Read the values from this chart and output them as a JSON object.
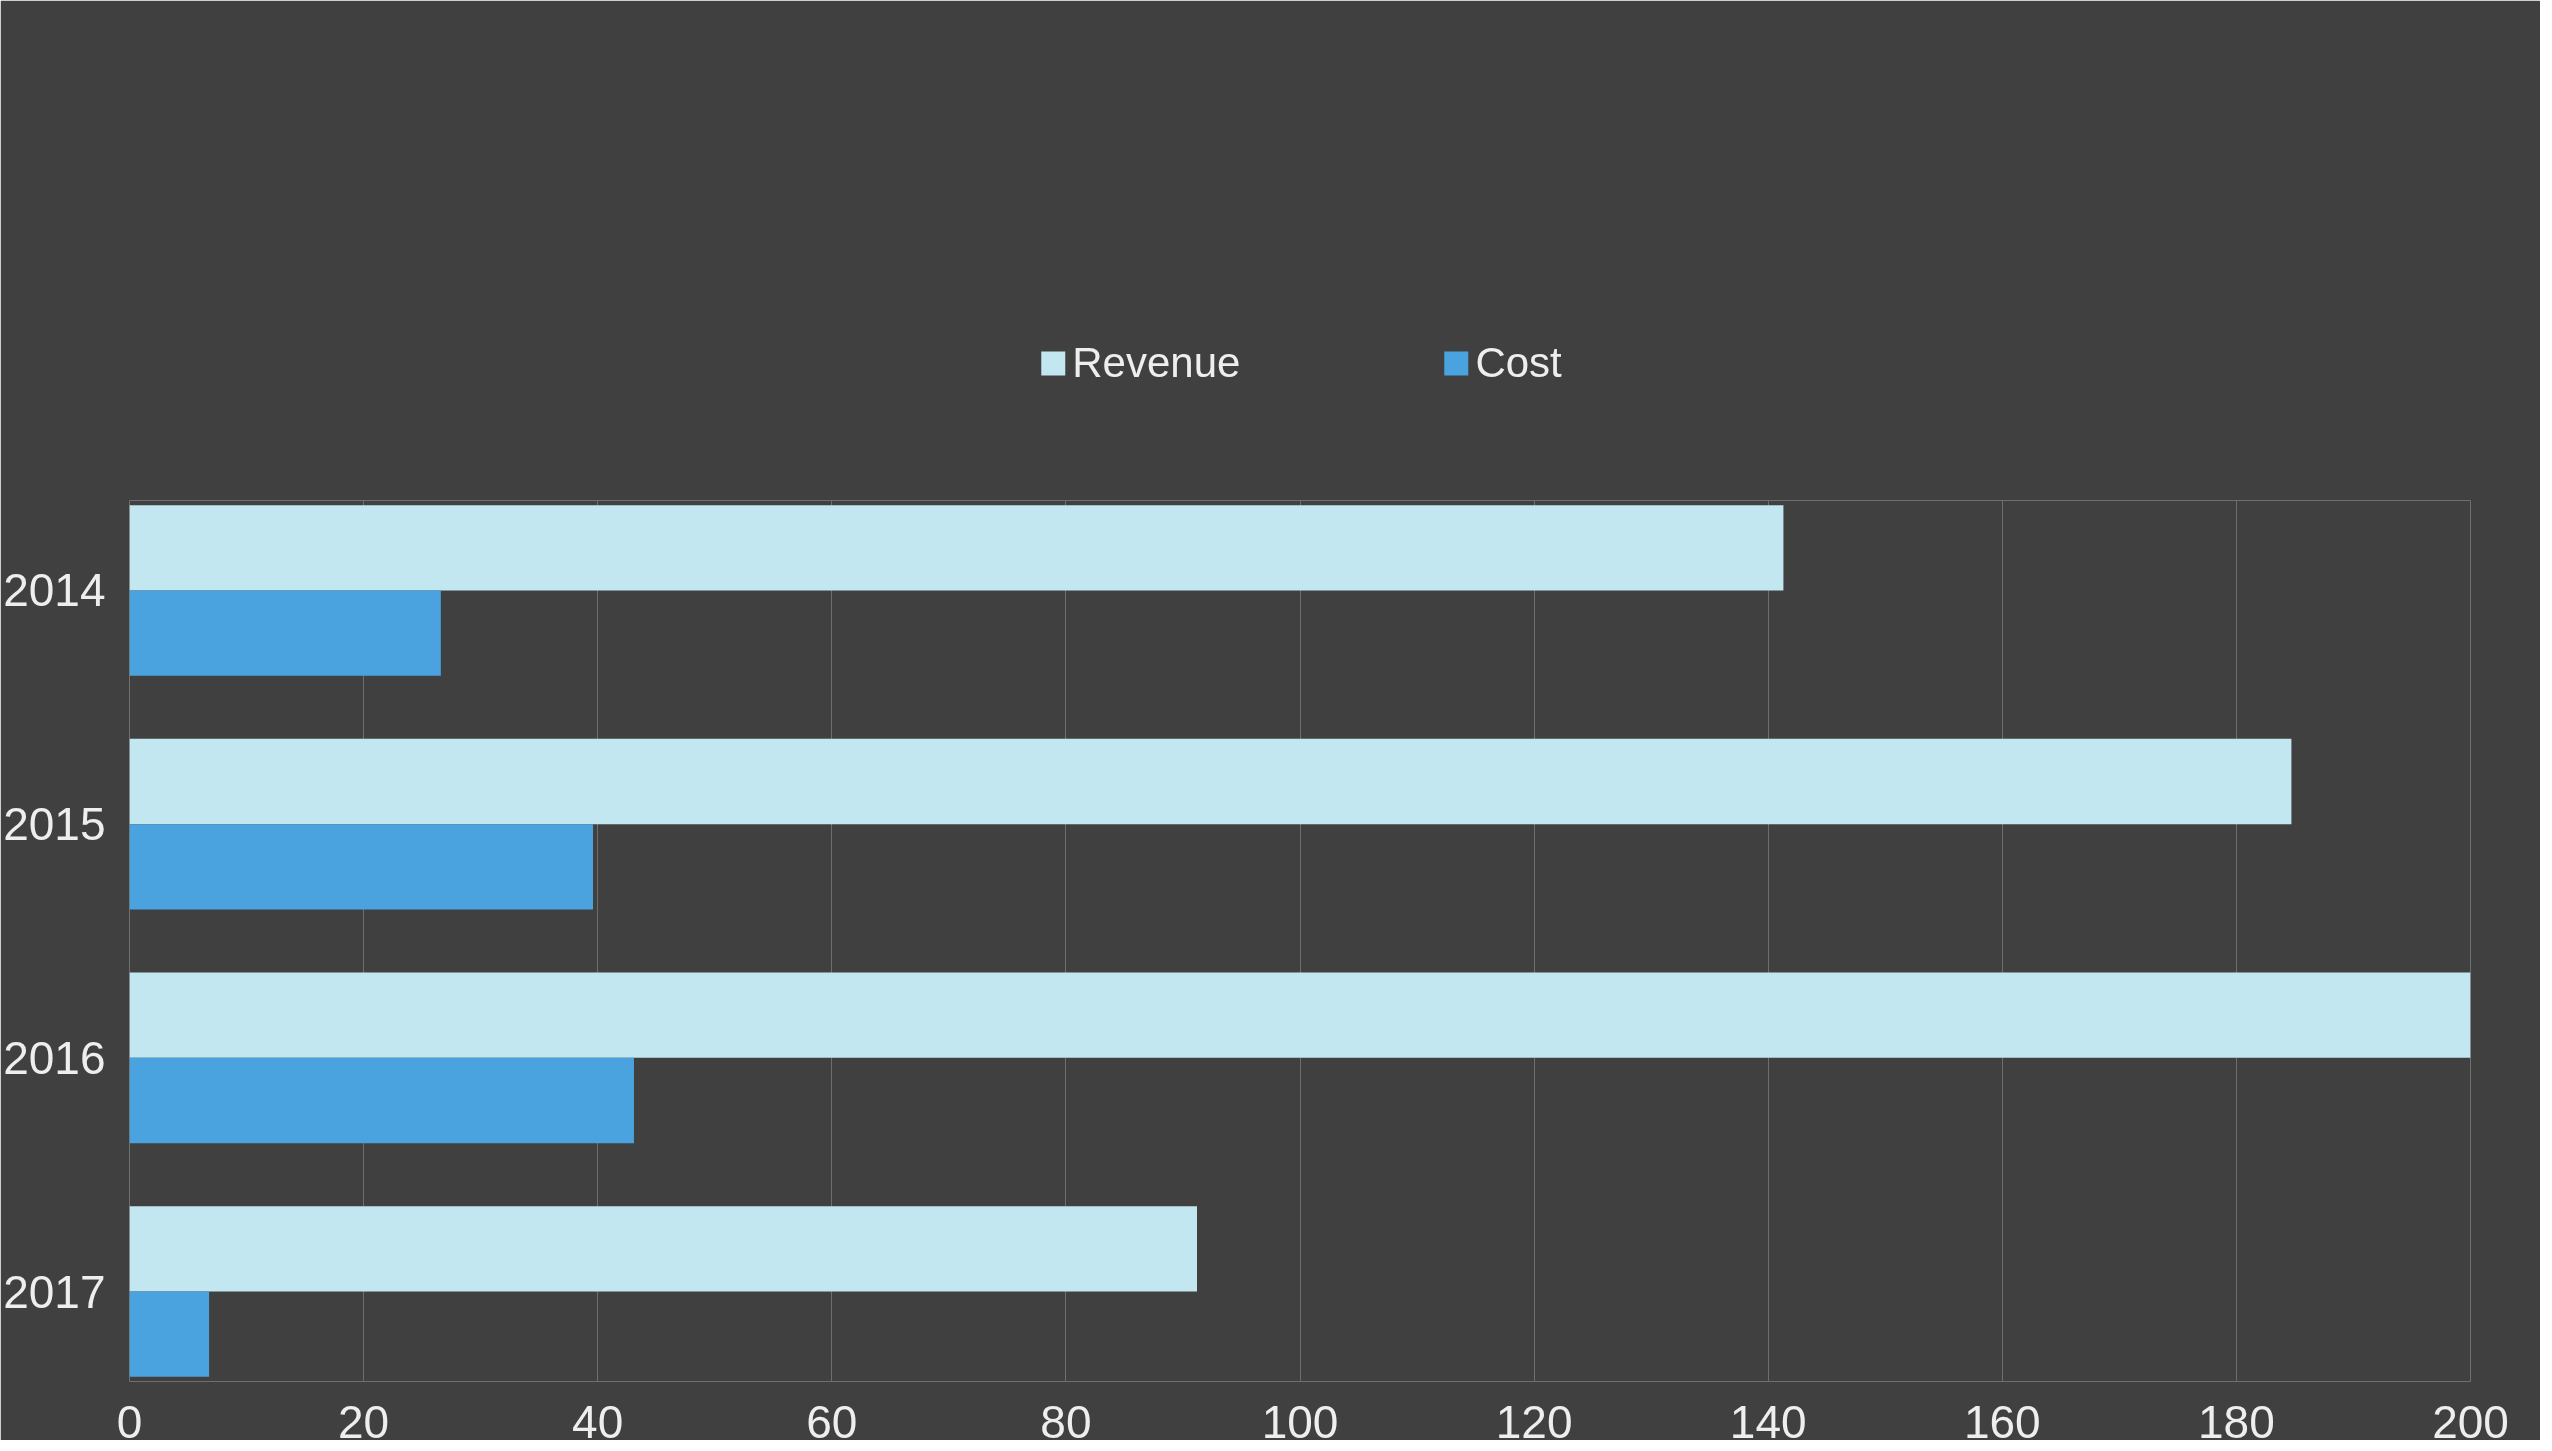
{
  "chart_data": {
    "type": "bar",
    "orientation": "horizontal",
    "categories": [
      "2014",
      "2015",
      "2016",
      "2017"
    ],
    "series": [
      {
        "name": "Revenue",
        "color": "#c2e7f0",
        "values": [
          141.3,
          184.7,
          200,
          91.2
        ]
      },
      {
        "name": "Cost",
        "color": "#4aa3df",
        "values": [
          26.6,
          39.6,
          43.1,
          6.8
        ]
      }
    ],
    "xlim": [
      0,
      200
    ],
    "xticks": [
      0,
      20,
      40,
      60,
      80,
      100,
      120,
      140,
      160,
      180,
      200
    ],
    "grid": "x",
    "legend": "top"
  }
}
